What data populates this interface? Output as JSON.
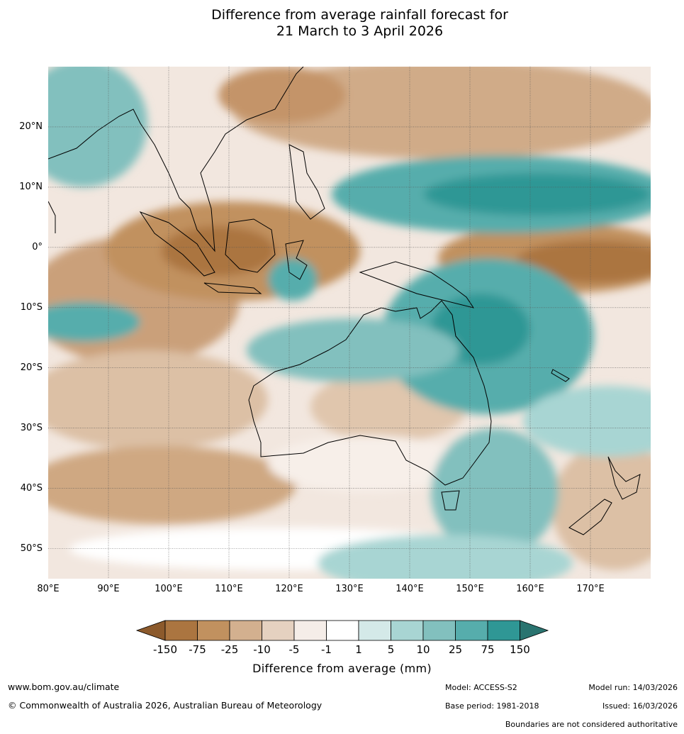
{
  "title": {
    "line1": "Difference from average rainfall forecast for",
    "line2": "21 March to 3 April 2026"
  },
  "map": {
    "lat_labels": [
      "20°N",
      "10°N",
      "0°",
      "10°S",
      "20°S",
      "30°S",
      "40°S",
      "50°S"
    ],
    "lon_labels": [
      "80°E",
      "90°E",
      "100°E",
      "110°E",
      "120°E",
      "130°E",
      "140°E",
      "150°E",
      "160°E",
      "170°E"
    ],
    "lat_range_deg": [
      -55,
      30
    ],
    "lon_range_deg": [
      80,
      180
    ],
    "outlines": [
      "coastline-icon",
      "country-borders-icon",
      "gridlines-icon"
    ]
  },
  "colorbar": {
    "labels": [
      "-150",
      "-75",
      "-25",
      "-10",
      "-5",
      "-1",
      "1",
      "5",
      "10",
      "25",
      "75",
      "150"
    ],
    "colors": [
      "#8c5a2c",
      "#ab7540",
      "#c1915f",
      "#d3b08f",
      "#e5d1c0",
      "#f5ede8",
      "#ffffff",
      "#d4e9e8",
      "#a8d5d3",
      "#82c0be",
      "#56adac",
      "#2f9795",
      "#2a7470"
    ],
    "title": "Difference from average (mm)"
  },
  "footer": {
    "website": "www.bom.gov.au/climate",
    "copyright": "© Commonwealth of Australia 2026, Australian Bureau of Meteorology",
    "model": "Model: ACCESS-S2",
    "base_period": "Base period: 1981-2018",
    "model_run": "Model run: 14/03/2026",
    "issued": "Issued: 16/03/2026",
    "disclaimer": "Boundaries are not considered authoritative"
  }
}
